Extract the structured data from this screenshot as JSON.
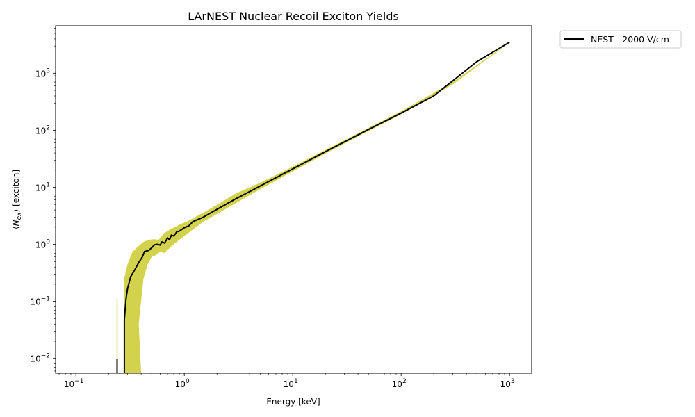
{
  "chart_data": {
    "type": "line",
    "title": "LArNEST Nuclear Recoil Exciton Yields",
    "xlabel": "Energy [keV]",
    "ylabel_parts": {
      "open": "⟨",
      "sym": "N",
      "sub": "ex",
      "close": "⟩ [exciton]"
    },
    "xscale": "log",
    "yscale": "log",
    "xlim": [
      0.065,
      1600
    ],
    "ylim": [
      0.0055,
      6800
    ],
    "grid": false,
    "legend_position": "outside-top-right",
    "x_ticks": [
      {
        "value": 0.1,
        "base": "10",
        "exp": "−1"
      },
      {
        "value": 1,
        "base": "10",
        "exp": "0"
      },
      {
        "value": 10,
        "base": "10",
        "exp": "1"
      },
      {
        "value": 100,
        "base": "10",
        "exp": "2"
      },
      {
        "value": 1000,
        "base": "10",
        "exp": "3"
      }
    ],
    "y_ticks": [
      {
        "value": 0.01,
        "base": "10",
        "exp": "−2"
      },
      {
        "value": 0.1,
        "base": "10",
        "exp": "−1"
      },
      {
        "value": 1,
        "base": "10",
        "exp": "0"
      },
      {
        "value": 10,
        "base": "10",
        "exp": "1"
      },
      {
        "value": 100,
        "base": "10",
        "exp": "2"
      },
      {
        "value": 1000,
        "base": "10",
        "exp": "3"
      }
    ],
    "series": [
      {
        "name": "NEST - 2000 V/cm",
        "color": "#000000",
        "band_color": "#bfbf00",
        "segments": [
          {
            "x": [
              0.24,
              0.24
            ],
            "y": [
              0.0055,
              0.0098
            ]
          },
          {
            "x": [
              0.28,
              0.28,
              0.29,
              0.3,
              0.32,
              0.35,
              0.38,
              0.41,
              0.43,
              0.47,
              0.5,
              0.53,
              0.56,
              0.6,
              0.62,
              0.66,
              0.7,
              0.73,
              0.76,
              0.8,
              0.85,
              0.9,
              1.0,
              1.1,
              1.2,
              1.5,
              2.0,
              3.0,
              5.0,
              10,
              20,
              50,
              100,
              200,
              500,
              1000
            ],
            "y": [
              0.0055,
              0.048,
              0.11,
              0.17,
              0.27,
              0.36,
              0.48,
              0.6,
              0.75,
              0.78,
              0.87,
              0.98,
              1.0,
              0.97,
              1.1,
              1.05,
              1.3,
              1.2,
              1.45,
              1.4,
              1.65,
              1.7,
              1.95,
              2.1,
              2.5,
              3.0,
              4.1,
              6.3,
              10.5,
              21,
              42,
              103,
              200,
              400,
              1600,
              3500
            ]
          }
        ],
        "band_upper": {
          "x": [
            0.28,
            0.3,
            0.33,
            0.37,
            0.42,
            0.47,
            0.52,
            0.58,
            0.65,
            0.75,
            0.9,
            1.1,
            1.5,
            2.0,
            3.0,
            5.0,
            10,
            20,
            50,
            100,
            300,
            1000
          ],
          "y": [
            0.26,
            0.45,
            0.72,
            0.9,
            1.1,
            1.2,
            1.23,
            1.2,
            1.55,
            1.85,
            2.2,
            2.6,
            3.6,
            4.9,
            7.8,
            12,
            23,
            45,
            110,
            215,
            700,
            3550
          ]
        },
        "band_lower": {
          "x": [
            0.4,
            0.38,
            0.42,
            0.46,
            0.5,
            0.55,
            0.6,
            0.65,
            0.75,
            0.9,
            1.1,
            1.5,
            2.0,
            3.0,
            5.0,
            10,
            20,
            50,
            100,
            300,
            1000
          ],
          "y": [
            0.0055,
            0.04,
            0.25,
            0.45,
            0.6,
            0.65,
            0.75,
            0.7,
            0.9,
            1.2,
            1.6,
            2.5,
            3.4,
            5.3,
            9.2,
            19,
            39,
            97,
            190,
            640,
            3450
          ]
        },
        "spike": {
          "x": 0.24,
          "y": [
            0.0055,
            0.11
          ]
        }
      }
    ]
  }
}
